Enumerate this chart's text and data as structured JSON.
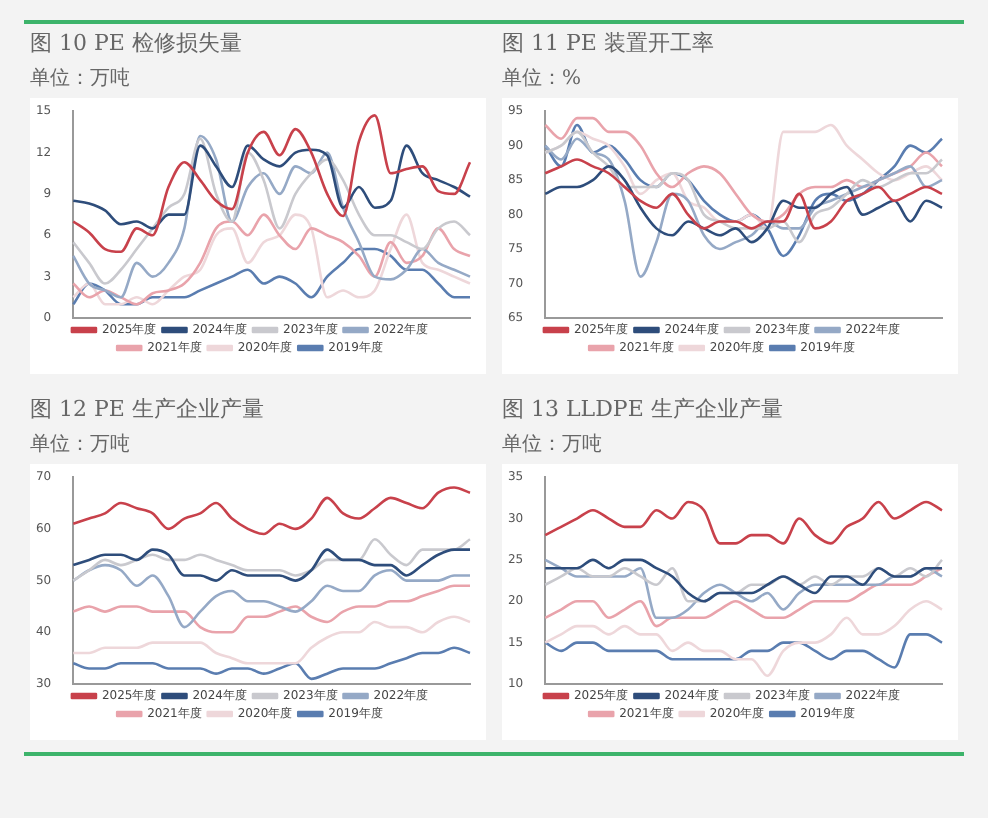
{
  "chart_data": [
    {
      "type": "line",
      "title": "图 10 PE 检修损失量",
      "subtitle": "单位：万吨",
      "categories": [
        null,
        null,
        null,
        null,
        null,
        null,
        null,
        null,
        null,
        null,
        null,
        null,
        null,
        null,
        null,
        null,
        null,
        null,
        null,
        null,
        null,
        null,
        null,
        null,
        null,
        null
      ],
      "ylim": [
        0,
        15
      ],
      "yticks": [
        0,
        3,
        6,
        9,
        12,
        15
      ],
      "tick_labels": "y",
      "legend": "bottom",
      "marker": "none",
      "series": [
        {
          "name": "2025年度",
          "color": "#c8414b",
          "values": [
            7.0,
            6.2,
            5.0,
            4.8,
            6.5,
            6.0,
            9.5,
            11.3,
            10.0,
            8.5,
            7.9,
            12.0,
            13.5,
            11.8,
            13.7,
            12.0,
            9.0,
            7.4,
            12.8,
            14.7,
            10.5,
            10.8,
            11.0,
            9.2,
            9.0,
            11.3
          ]
        },
        {
          "name": "2024年度",
          "color": "#2e4d7b",
          "values": [
            8.5,
            8.3,
            7.8,
            6.8,
            7.0,
            6.5,
            7.5,
            7.5,
            12.5,
            11.0,
            9.5,
            12.5,
            11.5,
            11.0,
            12.0,
            12.2,
            11.8,
            8.0,
            9.5,
            8.0,
            8.5,
            12.5,
            10.5,
            10.0,
            9.5,
            8.8
          ]
        },
        {
          "name": "2023年度",
          "color": "#c9c9ce",
          "values": [
            5.5,
            4.0,
            2.5,
            3.5,
            5.0,
            6.5,
            8.0,
            9.0,
            13.0,
            9.0,
            7.0,
            12.0,
            10.0,
            6.5,
            9.0,
            10.5,
            11.5,
            10.0,
            7.5,
            6.0,
            6.0,
            5.5,
            5.0,
            6.5,
            7.0,
            6.0
          ]
        },
        {
          "name": "2022年度",
          "color": "#95a9c6",
          "values": [
            4.5,
            2.5,
            2.0,
            1.5,
            4.0,
            3.0,
            4.0,
            6.5,
            13.2,
            11.5,
            7.0,
            9.5,
            10.5,
            9.0,
            11.0,
            10.5,
            12.0,
            8.0,
            5.5,
            3.0,
            2.8,
            3.5,
            5.0,
            4.0,
            3.5,
            3.0
          ]
        },
        {
          "name": "2021年度",
          "color": "#e9a3ab",
          "values": [
            2.5,
            1.5,
            2.0,
            1.5,
            1.0,
            1.8,
            2.0,
            2.5,
            4.0,
            6.5,
            7.0,
            6.0,
            7.5,
            6.0,
            5.0,
            6.5,
            6.0,
            5.5,
            4.5,
            3.0,
            5.5,
            4.0,
            4.5,
            6.5,
            5.0,
            4.5
          ]
        },
        {
          "name": "2020年度",
          "color": "#eed7da",
          "values": [
            1.5,
            2.5,
            1.0,
            1.0,
            1.5,
            1.0,
            2.0,
            3.0,
            3.5,
            6.0,
            6.5,
            4.0,
            5.5,
            6.0,
            7.5,
            6.5,
            1.5,
            2.0,
            1.5,
            2.0,
            5.0,
            7.5,
            4.0,
            3.5,
            3.0,
            2.5
          ]
        },
        {
          "name": "2019年度",
          "color": "#5a7db0",
          "values": [
            1.0,
            2.5,
            2.0,
            1.0,
            1.0,
            1.5,
            1.5,
            1.5,
            2.0,
            2.5,
            3.0,
            3.5,
            2.5,
            3.0,
            2.5,
            1.5,
            3.0,
            4.0,
            5.0,
            5.0,
            4.5,
            3.5,
            3.5,
            2.5,
            1.5,
            1.5
          ]
        }
      ]
    },
    {
      "type": "line",
      "title": "图 11 PE 装置开工率",
      "subtitle": "单位：%",
      "categories": [
        null,
        null,
        null,
        null,
        null,
        null,
        null,
        null,
        null,
        null,
        null,
        null,
        null,
        null,
        null,
        null,
        null,
        null,
        null,
        null,
        null,
        null,
        null,
        null,
        null,
        null
      ],
      "ylim": [
        65,
        95
      ],
      "yticks": [
        65,
        70,
        75,
        80,
        85,
        90,
        95
      ],
      "tick_labels": "y",
      "legend": "bottom",
      "marker": "none",
      "series": [
        {
          "name": "2025年度",
          "color": "#c8414b",
          "values": [
            86,
            87,
            88,
            87,
            86,
            84,
            82,
            81,
            83,
            80,
            78,
            79,
            79,
            78,
            79,
            79,
            83,
            78,
            79,
            82,
            83,
            84,
            82,
            83,
            84,
            83
          ]
        },
        {
          "name": "2024年度",
          "color": "#2e4d7b",
          "values": [
            83,
            84,
            84,
            85,
            87,
            85,
            81,
            78,
            77,
            79,
            78,
            77,
            78,
            76,
            78,
            82,
            81,
            81,
            83,
            84,
            80,
            81,
            82,
            79,
            82,
            81
          ]
        },
        {
          "name": "2023年度",
          "color": "#c9c9ce",
          "values": [
            89,
            90,
            92,
            89,
            87,
            84,
            84,
            84,
            86,
            85,
            80,
            79,
            78,
            78,
            78,
            79,
            76,
            80,
            81,
            83,
            85,
            84,
            85,
            86,
            86,
            88
          ]
        },
        {
          "name": "2022年度",
          "color": "#95a9c6",
          "values": [
            90,
            88,
            91,
            89,
            88,
            82,
            71,
            76,
            83,
            82,
            77,
            75,
            76,
            77,
            79,
            78,
            78,
            81,
            82,
            83,
            84,
            85,
            86,
            87,
            84,
            85
          ]
        },
        {
          "name": "2021年度",
          "color": "#e9a3ab",
          "values": [
            93,
            91,
            94,
            94,
            92,
            92,
            90,
            86,
            84,
            86,
            87,
            86,
            83,
            80,
            79,
            80,
            83,
            84,
            84,
            85,
            84,
            85,
            86,
            87,
            89,
            87
          ]
        },
        {
          "name": "2020年度",
          "color": "#eed7da",
          "values": [
            89,
            90,
            92,
            91,
            90,
            87,
            83,
            85,
            86,
            82,
            81,
            79,
            79,
            80,
            78,
            92,
            92,
            92,
            93,
            90,
            88,
            86,
            85,
            86,
            87,
            85
          ]
        },
        {
          "name": "2019年度",
          "color": "#5a7db0",
          "values": [
            90,
            87,
            93,
            89,
            90,
            88,
            85,
            84,
            86,
            85,
            82,
            80,
            79,
            80,
            78,
            74,
            77,
            82,
            83,
            82,
            83,
            85,
            87,
            90,
            89,
            91
          ]
        }
      ]
    },
    {
      "type": "line",
      "title": "图 12 PE 生产企业产量",
      "subtitle": "单位：万吨",
      "categories": [
        null,
        null,
        null,
        null,
        null,
        null,
        null,
        null,
        null,
        null,
        null,
        null,
        null,
        null,
        null,
        null,
        null,
        null,
        null,
        null,
        null,
        null,
        null,
        null,
        null,
        null
      ],
      "ylim": [
        30,
        70
      ],
      "yticks": [
        30,
        40,
        50,
        60,
        70
      ],
      "tick_labels": "y",
      "legend": "bottom",
      "marker": "none",
      "series": [
        {
          "name": "2025年度",
          "color": "#c8414b",
          "values": [
            61,
            62,
            63,
            65,
            64,
            63,
            60,
            62,
            63,
            65,
            62,
            60,
            59,
            61,
            60,
            62,
            66,
            63,
            62,
            64,
            66,
            65,
            64,
            67,
            68,
            67
          ]
        },
        {
          "name": "2024年度",
          "color": "#2e4d7b",
          "values": [
            53,
            54,
            55,
            55,
            54,
            56,
            55,
            51,
            51,
            50,
            52,
            51,
            51,
            51,
            50,
            52,
            56,
            54,
            54,
            53,
            53,
            51,
            53,
            55,
            56,
            56
          ]
        },
        {
          "name": "2023年度",
          "color": "#c9c9ce",
          "values": [
            50,
            52,
            54,
            53,
            54,
            55,
            54,
            54,
            55,
            54,
            53,
            52,
            52,
            52,
            51,
            52,
            54,
            54,
            54,
            58,
            55,
            53,
            56,
            56,
            56,
            58
          ]
        },
        {
          "name": "2022年度",
          "color": "#95a9c6",
          "values": [
            50,
            52,
            53,
            52,
            49,
            51,
            47,
            41,
            44,
            47,
            48,
            46,
            46,
            45,
            44,
            46,
            49,
            48,
            48,
            51,
            52,
            50,
            50,
            50,
            51,
            51
          ]
        },
        {
          "name": "2021年度",
          "color": "#e9a3ab",
          "values": [
            44,
            45,
            44,
            45,
            45,
            44,
            44,
            44,
            41,
            40,
            40,
            43,
            43,
            44,
            45,
            43,
            42,
            44,
            45,
            45,
            46,
            46,
            47,
            48,
            49,
            49
          ]
        },
        {
          "name": "2020年度",
          "color": "#eed7da",
          "values": [
            36,
            36,
            37,
            37,
            37,
            38,
            38,
            38,
            38,
            36,
            35,
            34,
            34,
            34,
            34,
            37,
            39,
            40,
            40,
            42,
            41,
            41,
            40,
            42,
            43,
            42
          ]
        },
        {
          "name": "2019年度",
          "color": "#5a7db0",
          "values": [
            34,
            33,
            33,
            34,
            34,
            34,
            33,
            33,
            33,
            32,
            33,
            33,
            32,
            33,
            34,
            31,
            32,
            33,
            33,
            33,
            34,
            35,
            36,
            36,
            37,
            36
          ]
        }
      ]
    },
    {
      "type": "line",
      "title": "图 13 LLDPE 生产企业产量",
      "subtitle": "单位：万吨",
      "categories": [
        null,
        null,
        null,
        null,
        null,
        null,
        null,
        null,
        null,
        null,
        null,
        null,
        null,
        null,
        null,
        null,
        null,
        null,
        null,
        null,
        null,
        null,
        null,
        null,
        null,
        null
      ],
      "ylim": [
        10,
        35
      ],
      "yticks": [
        10,
        15,
        20,
        25,
        30,
        35
      ],
      "tick_labels": "y",
      "legend": "bottom",
      "marker": "none",
      "series": [
        {
          "name": "2025年度",
          "color": "#c8414b",
          "values": [
            28,
            29,
            30,
            31,
            30,
            29,
            29,
            31,
            30,
            32,
            31,
            27,
            27,
            28,
            28,
            27,
            30,
            28,
            27,
            29,
            30,
            32,
            30,
            31,
            32,
            31
          ]
        },
        {
          "name": "2024年度",
          "color": "#2e4d7b",
          "values": [
            24,
            24,
            24,
            25,
            24,
            25,
            25,
            24,
            23,
            21,
            20,
            21,
            21,
            21,
            22,
            23,
            22,
            21,
            23,
            23,
            22,
            24,
            23,
            23,
            24,
            24
          ]
        },
        {
          "name": "2023年度",
          "color": "#c9c9ce",
          "values": [
            22,
            23,
            24,
            23,
            23,
            24,
            23,
            22,
            24,
            20,
            20,
            21,
            21,
            22,
            22,
            23,
            22,
            23,
            22,
            23,
            23,
            24,
            23,
            24,
            23,
            25
          ]
        },
        {
          "name": "2022年度",
          "color": "#95a9c6",
          "values": [
            25,
            24,
            23,
            23,
            23,
            23,
            24,
            18,
            18,
            19,
            21,
            22,
            21,
            20,
            21,
            19,
            21,
            22,
            22,
            22,
            22,
            22,
            23,
            23,
            24,
            23
          ]
        },
        {
          "name": "2021年度",
          "color": "#e9a3ab",
          "values": [
            18,
            19,
            20,
            20,
            18,
            19,
            20,
            17,
            18,
            18,
            18,
            19,
            20,
            19,
            18,
            18,
            19,
            20,
            20,
            20,
            21,
            22,
            22,
            22,
            23,
            24
          ]
        },
        {
          "name": "2020年度",
          "color": "#eed7da",
          "values": [
            15,
            16,
            17,
            17,
            16,
            17,
            16,
            16,
            14,
            15,
            14,
            14,
            13,
            13,
            11,
            14,
            15,
            15,
            16,
            18,
            16,
            16,
            17,
            19,
            20,
            19
          ]
        },
        {
          "name": "2019年度",
          "color": "#5a7db0",
          "values": [
            15,
            14,
            15,
            15,
            14,
            14,
            14,
            14,
            13,
            13,
            13,
            13,
            13,
            14,
            14,
            15,
            15,
            14,
            13,
            14,
            14,
            13,
            12,
            16,
            16,
            15
          ]
        }
      ]
    }
  ]
}
